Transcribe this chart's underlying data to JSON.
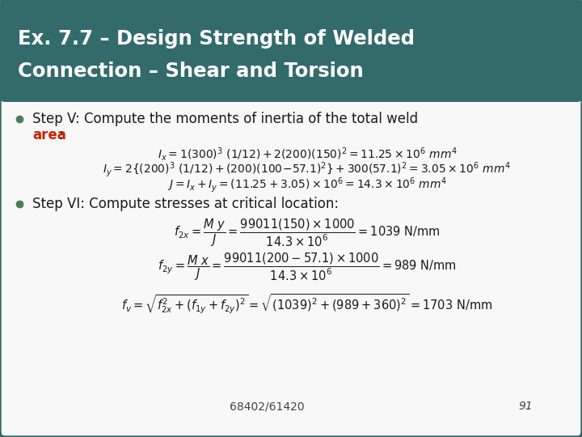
{
  "title_line1": "Ex. 7.7 – Design Strength of Welded",
  "title_line2": "Connection – Shear and Torsion",
  "title_bg": "#336b6b",
  "title_color": "#ffffff",
  "body_bg": "#f0f0f0",
  "inner_bg": "#f5f5f5",
  "border_color": "#336b6b",
  "bullet_color": "#4a7c59",
  "text_color": "#1a1a1a",
  "red_color": "#cc2200",
  "footer_text": "68402/61420",
  "footer_page": "91",
  "step5_line1": "Step V: Compute the moments of inertia of the total weld",
  "step5_line2_red": "area",
  "step5_line2_black": ":",
  "step6_text": "Step VI: Compute stresses at critical location:",
  "eq1": "$I_x = 1(300)^3 \\ (1/12)+2(200)(150)^2=11.25\\times10^6 \\ mm^4$",
  "eq2": "$I_y = 2 \\{(200)^3 \\ (1/12)+(200)(100\\!-\\!57.1)^2 \\}+ 300(57.1)^2=3.05\\times10^6 \\ mm^4$",
  "eq3": "$J = I_x + I_y = (11.25 + 3.05)\\times10^6 = 14.3\\times10^6 \\ mm^4$",
  "feq1": "$f_{2x} = \\dfrac{M \\ y}{J} = \\dfrac{99011(150)\\times1000}{14.3\\times10^6} = 1039 \\ \\mathrm{N/mm}$",
  "feq2": "$f_{2y} = \\dfrac{M \\ x}{J} = \\dfrac{99011(200-57.1)\\times1000}{14.3\\times10^6} = 989 \\ \\mathrm{N/mm}$",
  "feq3": "$f_v = \\sqrt{f_{2x}^2 + \\left(f_{1y}+f_{2y}\\right)^2} = \\sqrt{(1039)^2+(989+360)^2} = 1703 \\ \\mathrm{N/mm}$"
}
